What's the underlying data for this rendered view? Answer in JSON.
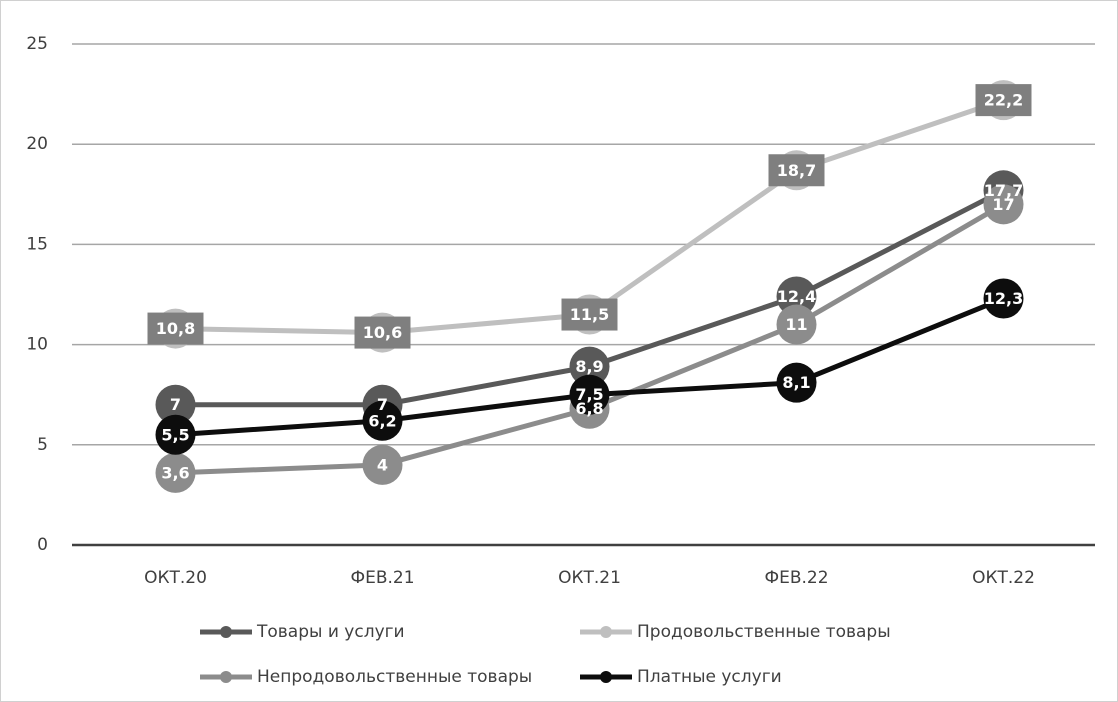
{
  "chart_data": {
    "type": "line",
    "categories": [
      "ОКТ.20",
      "ФЕВ.21",
      "ОКТ.21",
      "ФЕВ.22",
      "ОКТ.22"
    ],
    "series": [
      {
        "name": "Товары и услуги",
        "color": "#595959",
        "values": [
          7,
          7,
          8.9,
          12.4,
          17.7
        ],
        "value_labels": [
          "7",
          "7",
          "8,9",
          "12,4",
          "17,7"
        ]
      },
      {
        "name": "Продовольственные товары",
        "color": "#bfbfbf",
        "values": [
          10.8,
          10.6,
          11.5,
          18.7,
          22.2
        ],
        "value_labels": [
          "10,8",
          "10,6",
          "11,5",
          "18,7",
          "22,2"
        ]
      },
      {
        "name": "Непродовольственные товары",
        "color": "#8c8c8c",
        "values": [
          3.6,
          4,
          6.8,
          11,
          17
        ],
        "value_labels": [
          "3,6",
          "4",
          "6,8",
          "11",
          "17"
        ]
      },
      {
        "name": "Платные услуги",
        "color": "#0d0d0d",
        "values": [
          5.5,
          6.2,
          7.5,
          8.1,
          12.3
        ],
        "value_labels": [
          "5,5",
          "6,2",
          "7,5",
          "8,1",
          "12,3"
        ]
      }
    ],
    "ylim": [
      0,
      25
    ],
    "yticks": [
      0,
      5,
      10,
      15,
      20,
      25
    ],
    "grid": true,
    "legend": "bottom"
  }
}
